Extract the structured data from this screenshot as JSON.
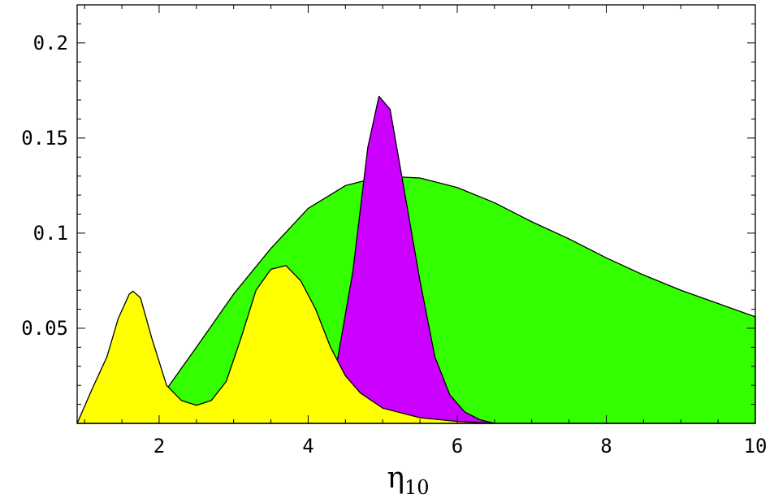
{
  "chart_data": {
    "type": "area",
    "title": "",
    "xlabel": {
      "symbol": "η",
      "subscript": "10"
    },
    "ylabel": "",
    "xlim": [
      0.9,
      10
    ],
    "ylim": [
      0,
      0.22
    ],
    "xticks": [
      2,
      4,
      6,
      8,
      10
    ],
    "yticks": [
      0.05,
      0.1,
      0.15,
      0.2
    ],
    "ytick_labels": [
      "0.05",
      "0.1",
      "0.15",
      "0.2"
    ],
    "grid": false,
    "legend": "none",
    "series": [
      {
        "color": "#33ff00",
        "x": [
          0.9,
          2.1,
          2.5,
          3.0,
          3.5,
          4.0,
          4.5,
          5.0,
          5.5,
          6.0,
          6.5,
          7.0,
          7.5,
          8.0,
          8.5,
          9.0,
          9.5,
          10.0
        ],
        "values": [
          0.0,
          0.018,
          0.04,
          0.068,
          0.092,
          0.113,
          0.125,
          0.13,
          0.129,
          0.124,
          0.116,
          0.106,
          0.097,
          0.087,
          0.078,
          0.07,
          0.063,
          0.056
        ]
      },
      {
        "color": "#cc00ff",
        "x": [
          0.9,
          4.2,
          4.4,
          4.6,
          4.8,
          4.95,
          5.1,
          5.3,
          5.5,
          5.7,
          5.9,
          6.1,
          6.3,
          6.5,
          10.0
        ],
        "values": [
          0.0,
          0.0,
          0.035,
          0.08,
          0.145,
          0.172,
          0.165,
          0.12,
          0.075,
          0.035,
          0.015,
          0.006,
          0.002,
          0.0,
          0.0
        ]
      },
      {
        "color": "#ffff00",
        "x": [
          0.9,
          1.1,
          1.3,
          1.45,
          1.6,
          1.65,
          1.75,
          1.9,
          2.1,
          2.3,
          2.5,
          2.7,
          2.9,
          3.1,
          3.3,
          3.5,
          3.7,
          3.9,
          4.1,
          4.3,
          4.5,
          4.7,
          5.0,
          5.5,
          6.0,
          6.5,
          10.0
        ],
        "values": [
          0.0,
          0.018,
          0.035,
          0.055,
          0.068,
          0.0695,
          0.066,
          0.045,
          0.02,
          0.012,
          0.0095,
          0.012,
          0.022,
          0.045,
          0.07,
          0.081,
          0.083,
          0.075,
          0.06,
          0.04,
          0.025,
          0.016,
          0.008,
          0.003,
          0.001,
          0.0,
          0.0
        ]
      }
    ]
  }
}
